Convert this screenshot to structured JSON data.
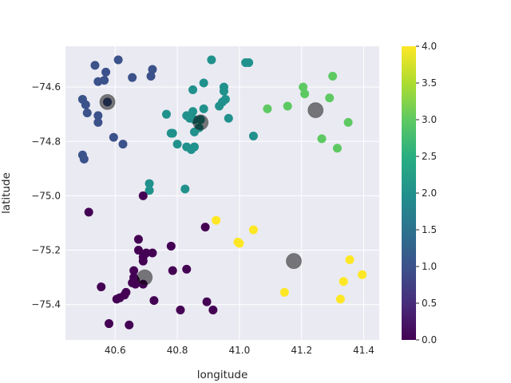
{
  "chart_data": {
    "type": "scatter",
    "xlabel": "longitude",
    "ylabel": "latitude",
    "xlim": [
      40.44,
      41.45
    ],
    "ylim": [
      -75.53,
      -74.45
    ],
    "xticks": [
      40.6,
      40.8,
      41.0,
      41.2,
      41.4
    ],
    "xtick_labels": [
      "40.6",
      "40.8",
      "41.0",
      "41.2",
      "41.4"
    ],
    "yticks": [
      -74.6,
      -74.8,
      -75.0,
      -75.2,
      -75.4
    ],
    "ytick_labels": [
      "−74.6",
      "−74.8",
      "−75.0",
      "−75.2",
      "−75.4"
    ],
    "grid": true,
    "colormap": "viridis",
    "colorbar": {
      "range": [
        0.0,
        4.0
      ],
      "ticks": [
        0.0,
        0.5,
        1.0,
        1.5,
        2.0,
        2.5,
        3.0,
        3.5,
        4.0
      ],
      "tick_labels": [
        "0.0",
        "0.5",
        "1.0",
        "1.5",
        "2.0",
        "2.5",
        "3.0",
        "3.5",
        "4.0"
      ]
    },
    "points": [
      {
        "x": 40.535,
        "y": -74.52,
        "c": 1
      },
      {
        "x": 40.61,
        "y": -74.5,
        "c": 1
      },
      {
        "x": 40.57,
        "y": -74.545,
        "c": 1
      },
      {
        "x": 40.565,
        "y": -74.575,
        "c": 1
      },
      {
        "x": 40.545,
        "y": -74.58,
        "c": 1
      },
      {
        "x": 40.655,
        "y": -74.565,
        "c": 1
      },
      {
        "x": 40.72,
        "y": -74.535,
        "c": 1
      },
      {
        "x": 40.715,
        "y": -74.56,
        "c": 1
      },
      {
        "x": 40.495,
        "y": -74.645,
        "c": 1
      },
      {
        "x": 40.505,
        "y": -74.665,
        "c": 1
      },
      {
        "x": 40.575,
        "y": -74.655,
        "c": 1
      },
      {
        "x": 40.51,
        "y": -74.695,
        "c": 1
      },
      {
        "x": 40.545,
        "y": -74.705,
        "c": 1
      },
      {
        "x": 40.545,
        "y": -74.73,
        "c": 1
      },
      {
        "x": 40.595,
        "y": -74.785,
        "c": 1
      },
      {
        "x": 40.625,
        "y": -74.81,
        "c": 1
      },
      {
        "x": 40.495,
        "y": -74.85,
        "c": 1
      },
      {
        "x": 40.5,
        "y": -74.865,
        "c": 1
      },
      {
        "x": 40.91,
        "y": -74.5,
        "c": 2
      },
      {
        "x": 40.885,
        "y": -74.585,
        "c": 2
      },
      {
        "x": 40.85,
        "y": -74.61,
        "c": 2
      },
      {
        "x": 40.95,
        "y": -74.6,
        "c": 2
      },
      {
        "x": 40.95,
        "y": -74.615,
        "c": 2
      },
      {
        "x": 40.955,
        "y": -74.645,
        "c": 2
      },
      {
        "x": 40.945,
        "y": -74.655,
        "c": 2
      },
      {
        "x": 40.935,
        "y": -74.67,
        "c": 2
      },
      {
        "x": 40.885,
        "y": -74.68,
        "c": 2
      },
      {
        "x": 40.85,
        "y": -74.69,
        "c": 2
      },
      {
        "x": 40.765,
        "y": -74.7,
        "c": 2
      },
      {
        "x": 40.83,
        "y": -74.705,
        "c": 2
      },
      {
        "x": 40.84,
        "y": -74.715,
        "c": 2
      },
      {
        "x": 40.855,
        "y": -74.72,
        "c": 2
      },
      {
        "x": 40.875,
        "y": -74.72,
        "c": 2
      },
      {
        "x": 40.965,
        "y": -74.715,
        "c": 2
      },
      {
        "x": 40.87,
        "y": -74.75,
        "c": 2
      },
      {
        "x": 40.855,
        "y": -74.765,
        "c": 2
      },
      {
        "x": 40.785,
        "y": -74.77,
        "c": 2
      },
      {
        "x": 40.78,
        "y": -74.77,
        "c": 2
      },
      {
        "x": 41.045,
        "y": -74.78,
        "c": 2
      },
      {
        "x": 40.8,
        "y": -74.81,
        "c": 2
      },
      {
        "x": 40.83,
        "y": -74.82,
        "c": 2
      },
      {
        "x": 40.855,
        "y": -74.82,
        "c": 2
      },
      {
        "x": 40.845,
        "y": -74.83,
        "c": 2
      },
      {
        "x": 40.71,
        "y": -74.955,
        "c": 2
      },
      {
        "x": 40.71,
        "y": -74.98,
        "c": 2
      },
      {
        "x": 40.825,
        "y": -74.975,
        "c": 2
      },
      {
        "x": 41.02,
        "y": -74.51,
        "c": 2
      },
      {
        "x": 41.03,
        "y": -74.51,
        "c": 2
      },
      {
        "x": 41.3,
        "y": -74.56,
        "c": 3
      },
      {
        "x": 41.205,
        "y": -74.6,
        "c": 3
      },
      {
        "x": 41.21,
        "y": -74.625,
        "c": 3
      },
      {
        "x": 41.29,
        "y": -74.64,
        "c": 3
      },
      {
        "x": 41.155,
        "y": -74.67,
        "c": 3
      },
      {
        "x": 41.09,
        "y": -74.68,
        "c": 3
      },
      {
        "x": 41.35,
        "y": -74.73,
        "c": 3
      },
      {
        "x": 41.265,
        "y": -74.79,
        "c": 3
      },
      {
        "x": 41.315,
        "y": -74.825,
        "c": 3
      },
      {
        "x": 40.925,
        "y": -75.09,
        "c": 4
      },
      {
        "x": 41.045,
        "y": -75.125,
        "c": 4
      },
      {
        "x": 40.995,
        "y": -75.17,
        "c": 4
      },
      {
        "x": 41.0,
        "y": -75.175,
        "c": 4
      },
      {
        "x": 41.355,
        "y": -75.235,
        "c": 4
      },
      {
        "x": 41.395,
        "y": -75.29,
        "c": 4
      },
      {
        "x": 41.335,
        "y": -75.315,
        "c": 4
      },
      {
        "x": 41.145,
        "y": -75.355,
        "c": 4
      },
      {
        "x": 41.325,
        "y": -75.38,
        "c": 4
      },
      {
        "x": 40.69,
        "y": -75.0,
        "c": 0
      },
      {
        "x": 40.515,
        "y": -75.06,
        "c": 0
      },
      {
        "x": 40.89,
        "y": -75.115,
        "c": 0
      },
      {
        "x": 40.675,
        "y": -75.16,
        "c": 0
      },
      {
        "x": 40.78,
        "y": -75.185,
        "c": 0
      },
      {
        "x": 40.675,
        "y": -75.2,
        "c": 0
      },
      {
        "x": 40.7,
        "y": -75.21,
        "c": 0
      },
      {
        "x": 40.72,
        "y": -75.21,
        "c": 0
      },
      {
        "x": 40.69,
        "y": -75.225,
        "c": 0
      },
      {
        "x": 40.69,
        "y": -75.24,
        "c": 0
      },
      {
        "x": 40.785,
        "y": -75.275,
        "c": 0
      },
      {
        "x": 40.83,
        "y": -75.27,
        "c": 0
      },
      {
        "x": 40.66,
        "y": -75.275,
        "c": 0
      },
      {
        "x": 40.66,
        "y": -75.3,
        "c": 0
      },
      {
        "x": 40.665,
        "y": -75.31,
        "c": 0
      },
      {
        "x": 40.655,
        "y": -75.32,
        "c": 0
      },
      {
        "x": 40.665,
        "y": -75.325,
        "c": 0
      },
      {
        "x": 40.69,
        "y": -75.325,
        "c": 0
      },
      {
        "x": 40.555,
        "y": -75.335,
        "c": 0
      },
      {
        "x": 40.635,
        "y": -75.355,
        "c": 0
      },
      {
        "x": 40.63,
        "y": -75.365,
        "c": 0
      },
      {
        "x": 40.615,
        "y": -75.375,
        "c": 0
      },
      {
        "x": 40.605,
        "y": -75.38,
        "c": 0
      },
      {
        "x": 40.725,
        "y": -75.385,
        "c": 0
      },
      {
        "x": 40.895,
        "y": -75.39,
        "c": 0
      },
      {
        "x": 40.81,
        "y": -75.42,
        "c": 0
      },
      {
        "x": 40.915,
        "y": -75.42,
        "c": 0
      },
      {
        "x": 40.58,
        "y": -75.47,
        "c": 0
      },
      {
        "x": 40.645,
        "y": -75.475,
        "c": 0
      }
    ],
    "centroids": [
      {
        "x": 40.575,
        "y": -74.655
      },
      {
        "x": 40.875,
        "y": -74.73
      },
      {
        "x": 41.245,
        "y": -74.685
      },
      {
        "x": 40.695,
        "y": -75.3
      },
      {
        "x": 41.175,
        "y": -75.24
      }
    ]
  }
}
